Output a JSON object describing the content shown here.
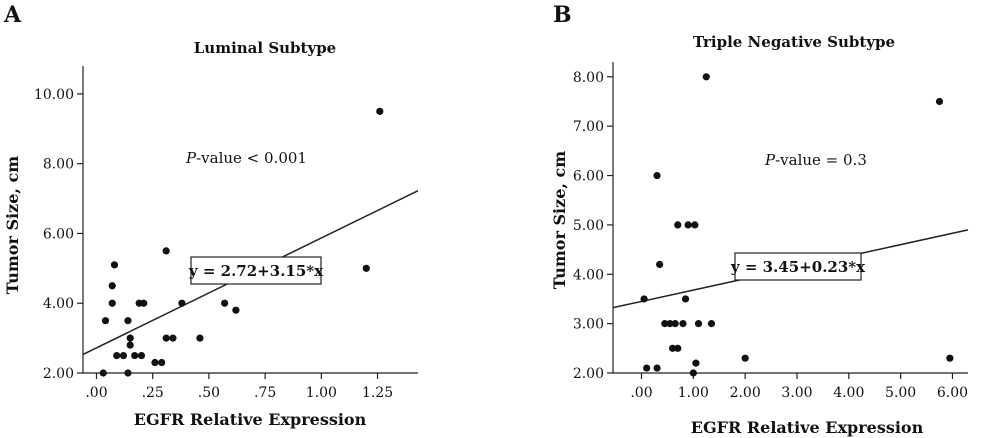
{
  "chart_data": [
    {
      "type": "scatter",
      "panel_label": "A",
      "title": "Luminal Subtype",
      "xlabel": "EGFR Relative Expression",
      "ylabel": "Tumor Size, cm",
      "xlim": [
        -0.06,
        1.43
      ],
      "ylim": [
        2.0,
        10.8
      ],
      "xticks": [
        0,
        0.25,
        0.5,
        0.75,
        1.0,
        1.25
      ],
      "xtick_labels": [
        ".00",
        ".25",
        ".50",
        ".75",
        "1.00",
        "1.25"
      ],
      "yticks": [
        2,
        4,
        6,
        8,
        10
      ],
      "ytick_labels": [
        "2.00",
        "4.00",
        "6.00",
        "8.00",
        "10.00"
      ],
      "points": [
        [
          0.03,
          2.0
        ],
        [
          0.04,
          3.5
        ],
        [
          0.07,
          4.0
        ],
        [
          0.07,
          4.5
        ],
        [
          0.08,
          5.1
        ],
        [
          0.09,
          2.5
        ],
        [
          0.12,
          2.5
        ],
        [
          0.14,
          3.5
        ],
        [
          0.14,
          2.0
        ],
        [
          0.15,
          3.0
        ],
        [
          0.15,
          2.8
        ],
        [
          0.17,
          2.5
        ],
        [
          0.19,
          4.0
        ],
        [
          0.2,
          2.5
        ],
        [
          0.21,
          4.0
        ],
        [
          0.26,
          2.3
        ],
        [
          0.29,
          2.3
        ],
        [
          0.31,
          5.5
        ],
        [
          0.31,
          3.0
        ],
        [
          0.34,
          3.0
        ],
        [
          0.38,
          4.0
        ],
        [
          0.46,
          3.0
        ],
        [
          0.57,
          4.0
        ],
        [
          0.62,
          3.8
        ],
        [
          1.2,
          5.0
        ],
        [
          1.26,
          9.5
        ]
      ],
      "fit": {
        "intercept": 2.72,
        "slope": 3.15
      },
      "equation": "y = 2.72+3.15*x",
      "p_prefix": "P",
      "p_rest": "-value < 0.001"
    },
    {
      "type": "scatter",
      "panel_label": "B",
      "title": "Triple Negative Subtype",
      "xlabel": "EGFR Relative Expression",
      "ylabel": "Tumor Size, cm",
      "xlim": [
        -0.55,
        6.3
      ],
      "ylim": [
        2.0,
        8.3
      ],
      "xticks": [
        0,
        1,
        2,
        3,
        4,
        5,
        6
      ],
      "xtick_labels": [
        ".00",
        "1.00",
        "2.00",
        "3.00",
        "4.00",
        "5.00",
        "6.00"
      ],
      "yticks": [
        2,
        3,
        4,
        5,
        6,
        7,
        8
      ],
      "ytick_labels": [
        "2.00",
        "3.00",
        "4.00",
        "5.00",
        "6.00",
        "7.00",
        "8.00"
      ],
      "points": [
        [
          0.05,
          3.5
        ],
        [
          0.1,
          2.1
        ],
        [
          0.3,
          2.1
        ],
        [
          0.3,
          6.0
        ],
        [
          0.35,
          4.2
        ],
        [
          0.45,
          3.0
        ],
        [
          0.55,
          3.0
        ],
        [
          0.6,
          2.5
        ],
        [
          0.65,
          3.0
        ],
        [
          0.7,
          2.5
        ],
        [
          0.7,
          5.0
        ],
        [
          0.8,
          3.0
        ],
        [
          0.85,
          3.5
        ],
        [
          0.9,
          5.0
        ],
        [
          1.0,
          2.0
        ],
        [
          1.03,
          5.0
        ],
        [
          1.05,
          2.2
        ],
        [
          1.1,
          3.0
        ],
        [
          1.25,
          8.0
        ],
        [
          1.35,
          3.0
        ],
        [
          2.0,
          2.3
        ],
        [
          5.75,
          7.5
        ],
        [
          5.95,
          2.3
        ]
      ],
      "fit": {
        "intercept": 3.45,
        "slope": 0.23
      },
      "equation": "y = 3.45+0.23*x",
      "p_prefix": "P",
      "p_rest": "-value = 0.3"
    }
  ]
}
